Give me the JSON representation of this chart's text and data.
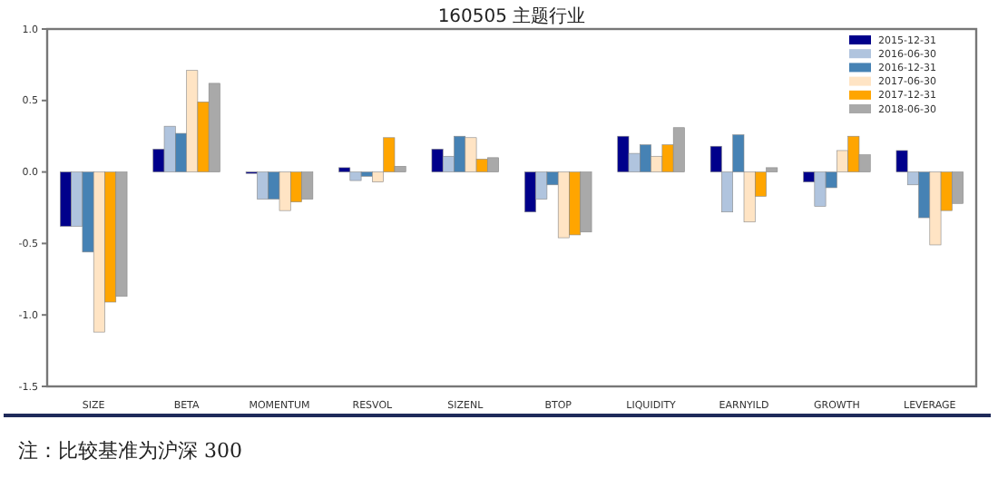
{
  "chart_data": {
    "type": "bar",
    "title": "160505 主题行业",
    "categories": [
      "SIZE",
      "BETA",
      "MOMENTUM",
      "RESVOL",
      "SIZENL",
      "BTOP",
      "LIQUIDITY",
      "EARNYILD",
      "GROWTH",
      "LEVERAGE"
    ],
    "series": [
      {
        "name": "2015-12-31",
        "color": "#00008b",
        "values": [
          -0.38,
          0.16,
          -0.01,
          0.03,
          0.16,
          -0.28,
          0.25,
          0.18,
          -0.07,
          0.15
        ]
      },
      {
        "name": "2016-06-30",
        "color": "#b0c4de",
        "values": [
          -0.38,
          0.32,
          -0.19,
          -0.06,
          0.11,
          -0.19,
          0.13,
          -0.28,
          -0.24,
          -0.09
        ]
      },
      {
        "name": "2016-12-31",
        "color": "#4682b4",
        "values": [
          -0.56,
          0.27,
          -0.19,
          -0.03,
          0.25,
          -0.09,
          0.19,
          0.26,
          -0.11,
          -0.32
        ]
      },
      {
        "name": "2017-06-30",
        "color": "#ffe4c4",
        "values": [
          -1.12,
          0.71,
          -0.27,
          -0.07,
          0.24,
          -0.46,
          0.11,
          -0.35,
          0.15,
          -0.51
        ]
      },
      {
        "name": "2017-12-31",
        "color": "#ffa500",
        "values": [
          -0.91,
          0.49,
          -0.21,
          0.24,
          0.09,
          -0.44,
          0.19,
          -0.17,
          0.25,
          -0.27
        ]
      },
      {
        "name": "2018-06-30",
        "color": "#a9a9a9",
        "values": [
          -0.87,
          0.62,
          -0.19,
          0.04,
          0.1,
          -0.42,
          0.31,
          0.03,
          0.12,
          -0.22
        ]
      }
    ],
    "ylim": [
      -1.5,
      1.0
    ],
    "yticks": [
      {
        "value": -1.5,
        "label": "-1.5"
      },
      {
        "value": -1.0,
        "label": "-1.0"
      },
      {
        "value": -0.5,
        "label": "-0.5"
      },
      {
        "value": 0,
        "label": "0.0"
      },
      {
        "value": 0.5,
        "label": "0.5"
      },
      {
        "value": 1.0,
        "label": "1.0"
      }
    ],
    "grid": false,
    "legend": "top right",
    "annotations": [
      "注：比较基准为沪深 300"
    ]
  }
}
